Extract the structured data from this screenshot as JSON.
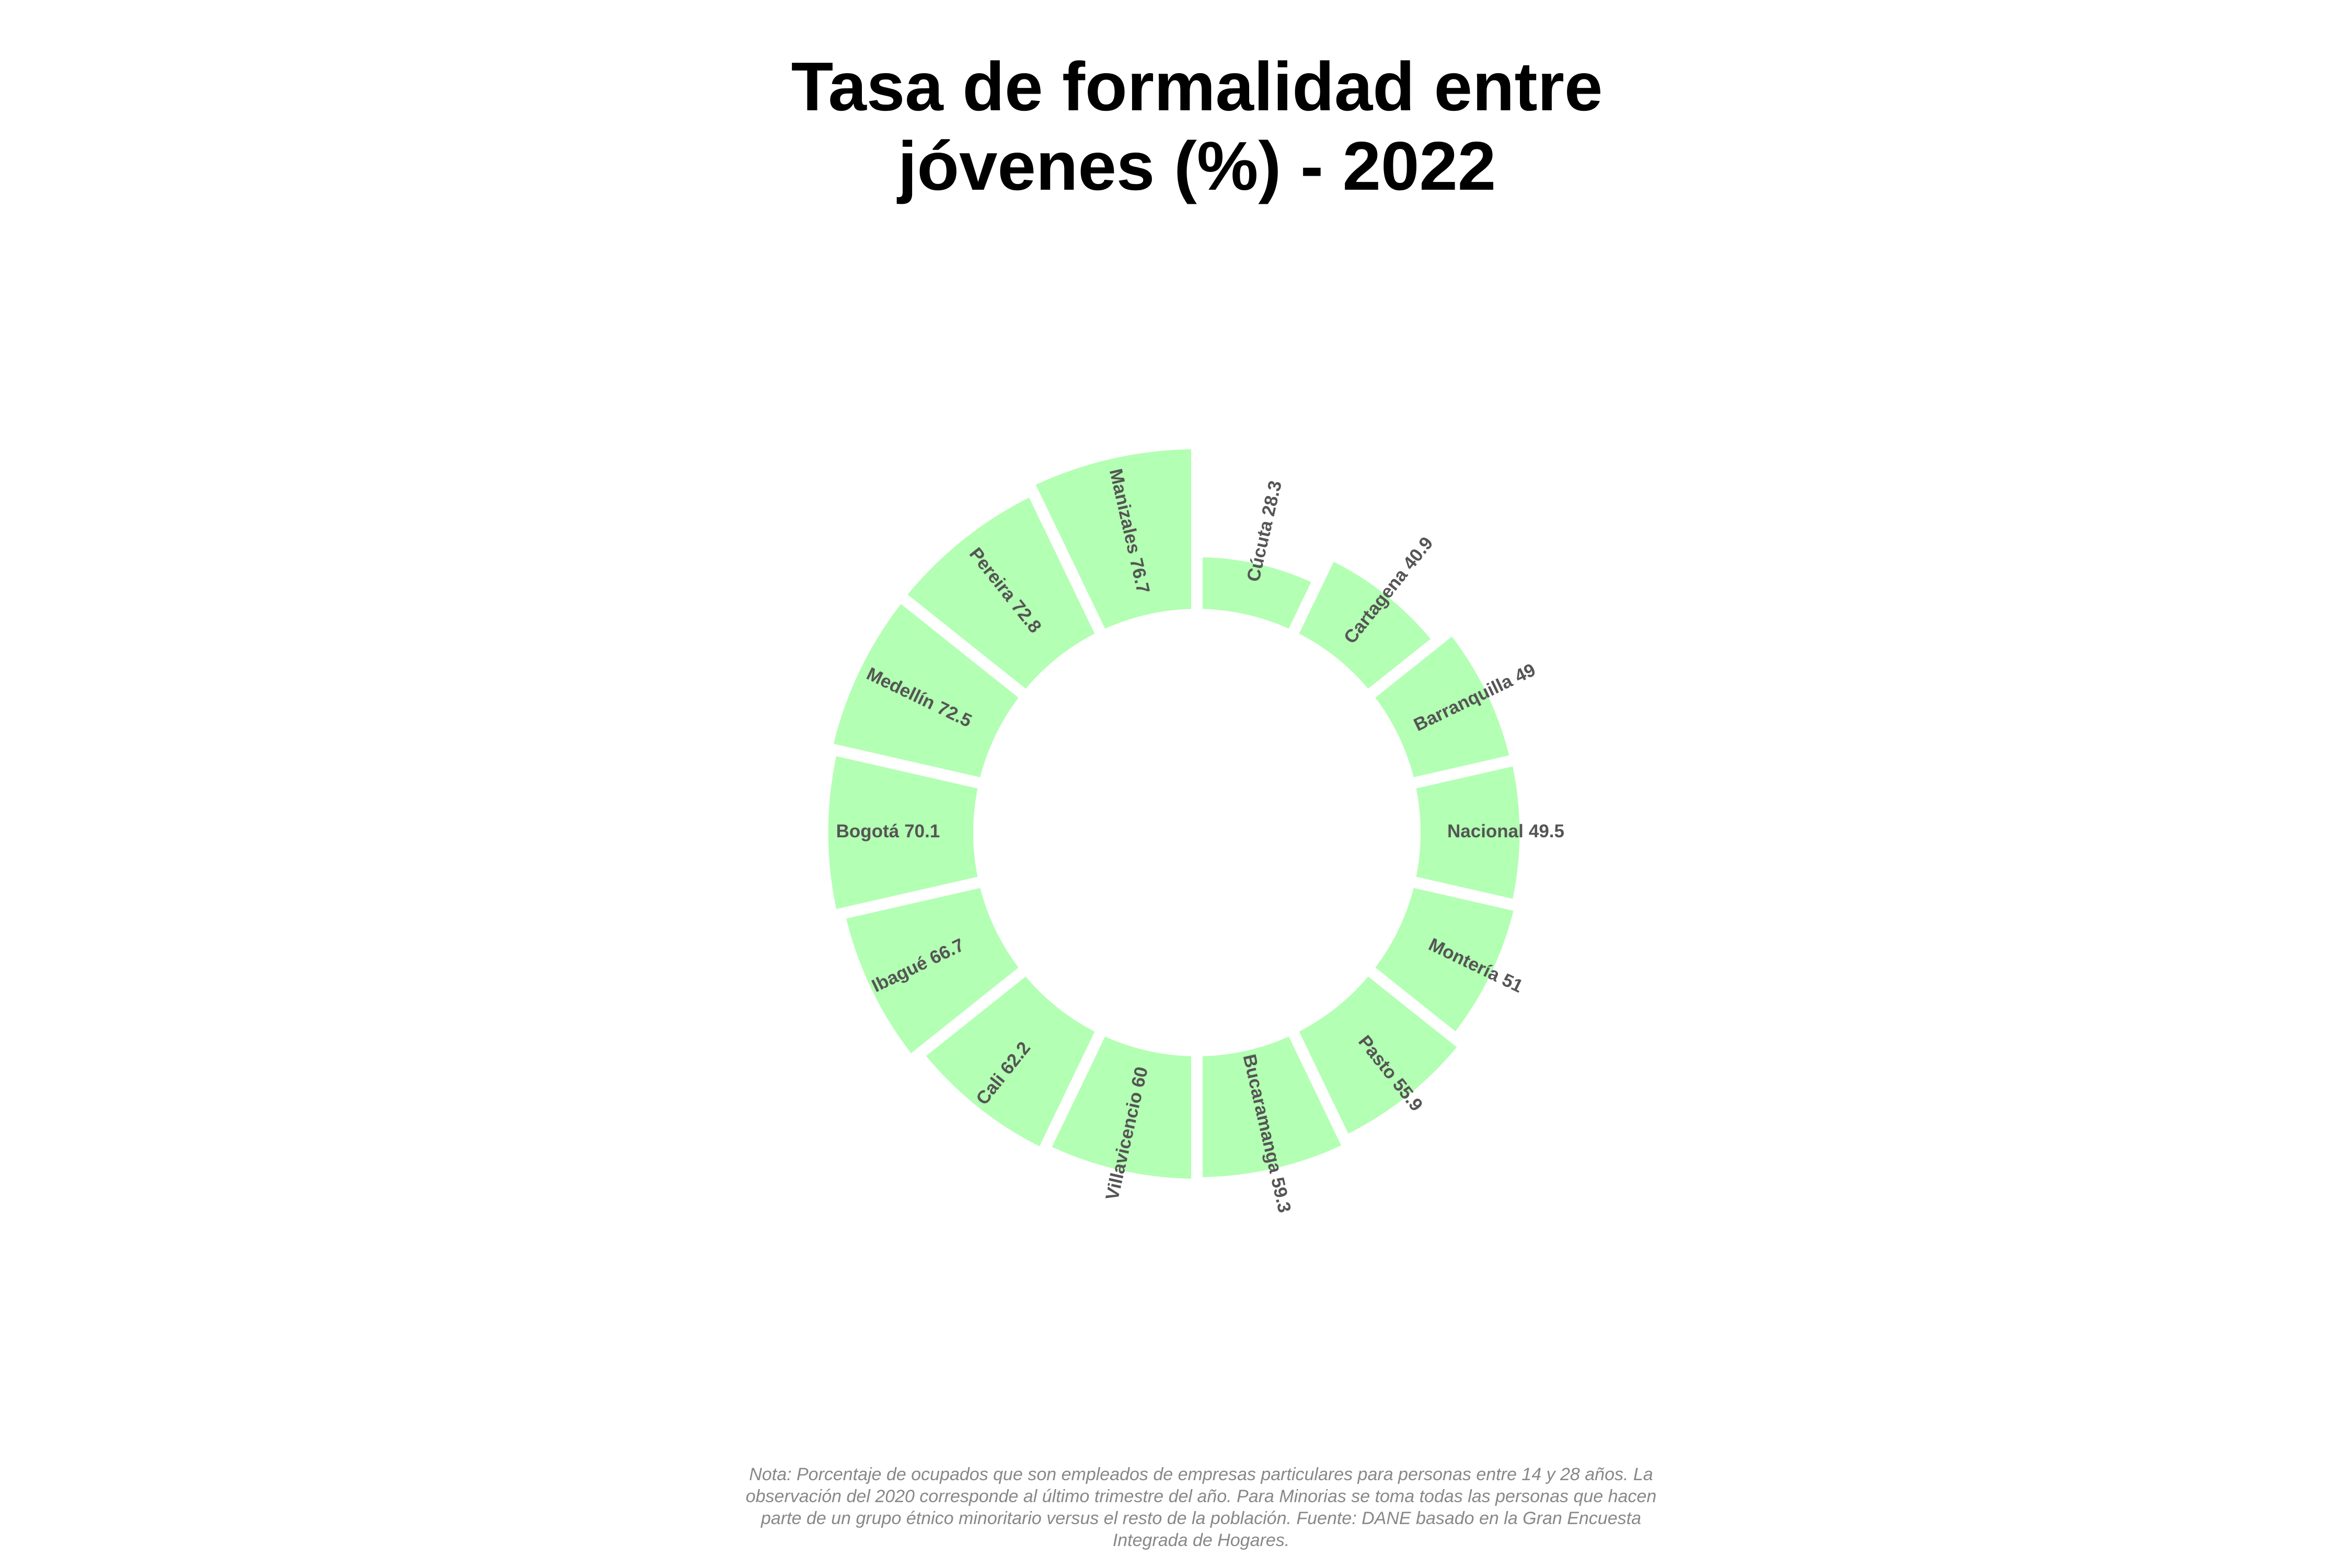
{
  "chart_data": {
    "type": "radial_bar",
    "title": "Tasa de formalidad entre jóvenes (%) - 2022",
    "note": "Nota: Porcentaje de ocupados que son empleados de empresas particulares para personas entre 14 y 28 años. La observación del 2020 corresponde al último trimestre del año. Para Minorias se toma todas las personas que hacen parte de un grupo étnico minoritario versus el resto de la población. Fuente: DANE basado en la Gran Encuesta Integrada de Hogares.",
    "categories": [
      "Cúcuta",
      "Cartagena",
      "Barranquilla",
      "Nacional",
      "Montería",
      "Pasto",
      "Bucaramanga",
      "Villavicencio",
      "Cali",
      "Ibagué",
      "Bogotá",
      "Medellín",
      "Pereira",
      "Manizales"
    ],
    "values": [
      28.3,
      40.9,
      49,
      49.5,
      51,
      55.9,
      59.3,
      60,
      62.2,
      66.7,
      70.1,
      72.5,
      72.8,
      76.7
    ],
    "color": "#b3ffb3"
  }
}
